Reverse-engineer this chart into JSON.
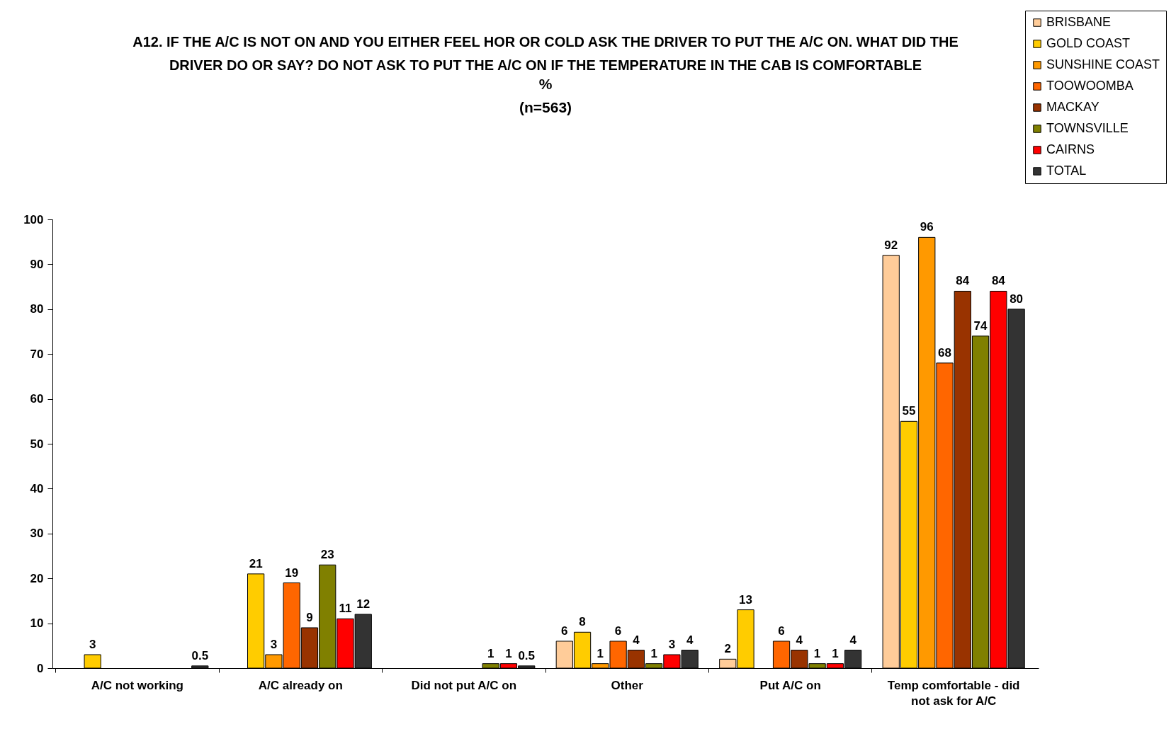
{
  "chart_data": {
    "type": "bar",
    "title": "A12. IF THE A/C IS NOT ON AND YOU EITHER FEEL HOR OR COLD ASK THE DRIVER TO PUT THE A/C ON.  WHAT DID THE DRIVER DO OR SAY?  DO NOT ASK TO PUT THE A/C ON IF THE TEMPERATURE IN THE CAB IS COMFORTABLE",
    "subtitle": "%\n(n=563)",
    "categories": [
      "A/C not working",
      "A/C already on",
      "Did not put A/C on",
      "Other",
      "Put A/C on",
      "Temp comfortable - did not ask for A/C"
    ],
    "series": [
      {
        "name": "BRISBANE",
        "color": "#ffcc99",
        "values": [
          null,
          null,
          null,
          6,
          2,
          92
        ]
      },
      {
        "name": "GOLD COAST",
        "color": "#ffcc00",
        "values": [
          3,
          21,
          null,
          8,
          13,
          55
        ]
      },
      {
        "name": "SUNSHINE COAST",
        "color": "#ff9900",
        "values": [
          null,
          3,
          null,
          1,
          null,
          96
        ]
      },
      {
        "name": "TOOWOOMBA",
        "color": "#ff6600",
        "values": [
          null,
          19,
          null,
          6,
          6,
          68
        ]
      },
      {
        "name": "MACKAY",
        "color": "#993300",
        "values": [
          null,
          9,
          null,
          4,
          4,
          84
        ]
      },
      {
        "name": "TOWNSVILLE",
        "color": "#808000",
        "values": [
          null,
          23,
          1,
          1,
          1,
          74
        ]
      },
      {
        "name": "CAIRNS",
        "color": "#ff0000",
        "values": [
          null,
          11,
          1,
          3,
          1,
          84
        ]
      },
      {
        "name": "TOTAL",
        "color": "#333333",
        "values": [
          0.5,
          12,
          0.5,
          4,
          4,
          80
        ]
      }
    ],
    "ylim": [
      0,
      100
    ],
    "yticks": [
      0,
      10,
      20,
      30,
      40,
      50,
      60,
      70,
      80,
      90,
      100
    ],
    "grid": false,
    "legend": "top right",
    "data_labels": true
  }
}
